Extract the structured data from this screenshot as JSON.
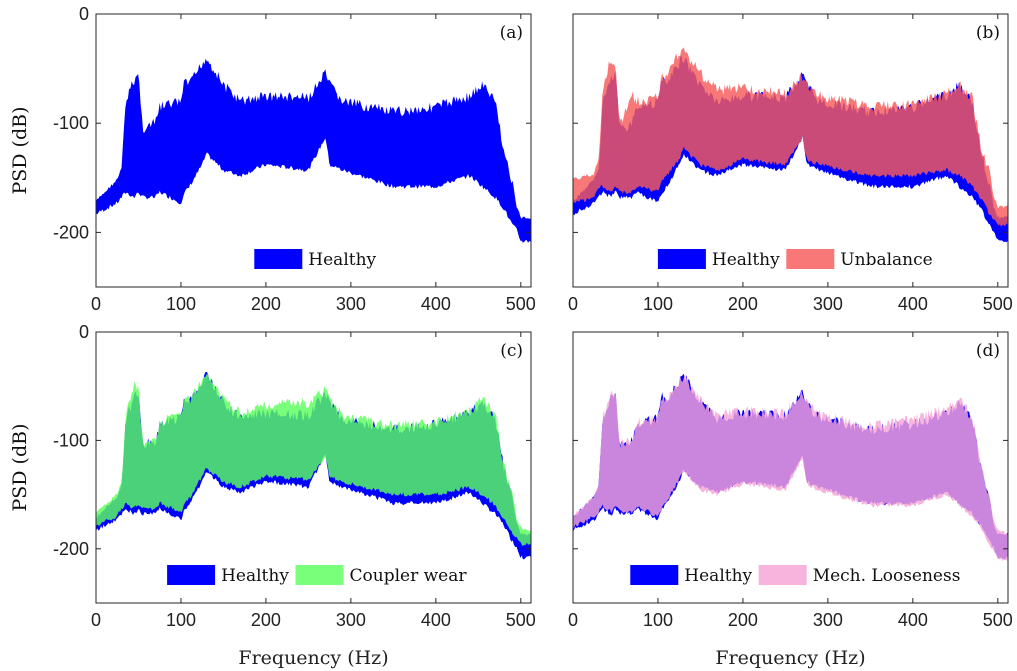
{
  "chart_data": [
    {
      "type": "area",
      "panel_label": "(a)",
      "ylabel": "PSD (dB)",
      "xlabel": "",
      "xlim": [
        0,
        512
      ],
      "ylim": [
        -250,
        0
      ],
      "xticks": [
        0,
        100,
        200,
        300,
        400,
        500
      ],
      "yticks": [
        0,
        -100,
        -200
      ],
      "ytick_labels": [
        "0",
        "-100",
        "-200"
      ],
      "show_yticks": true,
      "legend_placement": "bottom-center",
      "series": [
        {
          "name": "Healthy",
          "color": "#0000ff",
          "x": [
            0,
            25,
            30,
            35,
            45,
            50,
            55,
            70,
            75,
            100,
            105,
            110,
            125,
            130,
            150,
            170,
            200,
            250,
            270,
            275,
            290,
            350,
            400,
            440,
            455,
            470,
            480,
            490,
            495,
            500,
            512
          ],
          "upper": [
            -170,
            -150,
            -140,
            -75,
            -55,
            -50,
            -100,
            -95,
            -80,
            -75,
            -55,
            -60,
            -40,
            -35,
            -60,
            -75,
            -70,
            -72,
            -50,
            -60,
            -75,
            -85,
            -80,
            -70,
            -60,
            -75,
            -120,
            -150,
            -175,
            -185,
            -185
          ],
          "lower": [
            -185,
            -175,
            -170,
            -165,
            -170,
            -165,
            -170,
            -170,
            -165,
            -175,
            -165,
            -160,
            -140,
            -130,
            -145,
            -150,
            -140,
            -145,
            -115,
            -140,
            -145,
            -160,
            -160,
            -150,
            -160,
            -170,
            -180,
            -195,
            -200,
            -210,
            -210
          ]
        }
      ]
    },
    {
      "type": "area",
      "panel_label": "(b)",
      "ylabel": "",
      "xlabel": "",
      "xlim": [
        0,
        512
      ],
      "ylim": [
        -250,
        0
      ],
      "xticks": [
        0,
        100,
        200,
        300,
        400,
        500
      ],
      "yticks": [
        0,
        -100,
        -200
      ],
      "ytick_labels": [
        "",
        "",
        ""
      ],
      "show_yticks": false,
      "legend_placement": "bottom-center",
      "series": [
        {
          "name": "Healthy",
          "color": "#0000ff",
          "x": [
            0,
            25,
            30,
            35,
            45,
            50,
            55,
            70,
            75,
            100,
            105,
            110,
            125,
            130,
            150,
            170,
            200,
            250,
            270,
            275,
            290,
            350,
            400,
            440,
            455,
            470,
            480,
            490,
            495,
            500,
            512
          ],
          "upper": [
            -170,
            -150,
            -140,
            -75,
            -55,
            -50,
            -100,
            -95,
            -80,
            -75,
            -55,
            -60,
            -40,
            -35,
            -60,
            -75,
            -70,
            -72,
            -50,
            -60,
            -75,
            -85,
            -80,
            -70,
            -60,
            -75,
            -120,
            -150,
            -175,
            -185,
            -185
          ],
          "lower": [
            -185,
            -175,
            -170,
            -165,
            -170,
            -165,
            -170,
            -170,
            -165,
            -175,
            -165,
            -160,
            -140,
            -130,
            -145,
            -150,
            -140,
            -145,
            -115,
            -140,
            -145,
            -160,
            -160,
            -150,
            -160,
            -170,
            -180,
            -195,
            -200,
            -210,
            -210
          ]
        },
        {
          "name": "Unbalance",
          "color": "#f75a5a",
          "x": [
            0,
            25,
            30,
            35,
            45,
            50,
            55,
            70,
            75,
            100,
            105,
            110,
            125,
            130,
            150,
            170,
            200,
            250,
            270,
            275,
            290,
            350,
            400,
            440,
            455,
            470,
            480,
            490,
            495,
            500,
            512
          ],
          "upper": [
            -150,
            -145,
            -130,
            -60,
            -35,
            -45,
            -95,
            -70,
            -75,
            -72,
            -50,
            -55,
            -30,
            -28,
            -50,
            -65,
            -62,
            -68,
            -52,
            -60,
            -70,
            -80,
            -78,
            -68,
            -60,
            -72,
            -115,
            -140,
            -165,
            -175,
            -175
          ],
          "lower": [
            -175,
            -170,
            -160,
            -160,
            -165,
            -160,
            -165,
            -165,
            -160,
            -165,
            -155,
            -150,
            -135,
            -125,
            -140,
            -145,
            -135,
            -140,
            -115,
            -135,
            -140,
            -150,
            -150,
            -145,
            -150,
            -160,
            -170,
            -185,
            -190,
            -195,
            -195
          ]
        }
      ]
    },
    {
      "type": "area",
      "panel_label": "(c)",
      "ylabel": "PSD (dB)",
      "xlabel": "Frequency (Hz)",
      "xlim": [
        0,
        512
      ],
      "ylim": [
        -250,
        0
      ],
      "xticks": [
        0,
        100,
        200,
        300,
        400,
        500
      ],
      "yticks": [
        0,
        -100,
        -200
      ],
      "ytick_labels": [
        "0",
        "-100",
        "-200"
      ],
      "show_yticks": true,
      "legend_placement": "bottom-center",
      "series": [
        {
          "name": "Healthy",
          "color": "#0000ff",
          "x": [
            0,
            25,
            30,
            35,
            45,
            50,
            55,
            70,
            75,
            100,
            105,
            110,
            125,
            130,
            150,
            170,
            200,
            250,
            270,
            275,
            290,
            350,
            400,
            440,
            455,
            470,
            480,
            490,
            495,
            500,
            512
          ],
          "upper": [
            -170,
            -150,
            -140,
            -75,
            -55,
            -50,
            -100,
            -95,
            -80,
            -75,
            -55,
            -60,
            -40,
            -35,
            -60,
            -75,
            -70,
            -72,
            -50,
            -60,
            -75,
            -85,
            -80,
            -70,
            -60,
            -75,
            -120,
            -150,
            -175,
            -185,
            -185
          ],
          "lower": [
            -185,
            -175,
            -170,
            -165,
            -170,
            -165,
            -170,
            -170,
            -165,
            -175,
            -165,
            -160,
            -140,
            -130,
            -145,
            -150,
            -140,
            -145,
            -115,
            -140,
            -145,
            -160,
            -160,
            -150,
            -160,
            -170,
            -180,
            -195,
            -200,
            -210,
            -210
          ]
        },
        {
          "name": "Coupler wear",
          "color": "#5cff5c",
          "x": [
            0,
            25,
            30,
            35,
            45,
            50,
            55,
            70,
            75,
            100,
            105,
            110,
            125,
            130,
            150,
            170,
            200,
            250,
            270,
            275,
            290,
            350,
            400,
            440,
            455,
            470,
            480,
            490,
            495,
            500,
            512
          ],
          "upper": [
            -165,
            -148,
            -138,
            -70,
            -45,
            -48,
            -98,
            -92,
            -78,
            -73,
            -55,
            -58,
            -38,
            -34,
            -58,
            -70,
            -62,
            -60,
            -48,
            -58,
            -72,
            -82,
            -78,
            -68,
            -58,
            -72,
            -118,
            -145,
            -170,
            -180,
            -182
          ],
          "lower": [
            -180,
            -172,
            -165,
            -160,
            -165,
            -160,
            -165,
            -165,
            -160,
            -168,
            -158,
            -155,
            -135,
            -128,
            -140,
            -145,
            -135,
            -138,
            -118,
            -135,
            -140,
            -152,
            -152,
            -145,
            -152,
            -162,
            -175,
            -188,
            -192,
            -198,
            -198
          ]
        }
      ]
    },
    {
      "type": "area",
      "panel_label": "(d)",
      "ylabel": "",
      "xlabel": "Frequency (Hz)",
      "xlim": [
        0,
        512
      ],
      "ylim": [
        -250,
        0
      ],
      "xticks": [
        0,
        100,
        200,
        300,
        400,
        500
      ],
      "yticks": [
        0,
        -100,
        -200
      ],
      "ytick_labels": [
        "",
        "",
        ""
      ],
      "show_yticks": false,
      "legend_placement": "bottom-center",
      "series": [
        {
          "name": "Healthy",
          "color": "#0000ff",
          "x": [
            0,
            25,
            30,
            35,
            45,
            50,
            55,
            70,
            75,
            100,
            105,
            110,
            125,
            130,
            150,
            170,
            200,
            250,
            270,
            275,
            290,
            350,
            400,
            440,
            455,
            470,
            480,
            490,
            495,
            500,
            512
          ],
          "upper": [
            -170,
            -150,
            -140,
            -75,
            -55,
            -50,
            -100,
            -95,
            -80,
            -75,
            -55,
            -60,
            -40,
            -35,
            -60,
            -75,
            -70,
            -72,
            -50,
            -60,
            -75,
            -85,
            -80,
            -70,
            -60,
            -75,
            -120,
            -150,
            -175,
            -185,
            -185
          ],
          "lower": [
            -185,
            -175,
            -170,
            -165,
            -170,
            -165,
            -170,
            -170,
            -165,
            -175,
            -165,
            -160,
            -140,
            -130,
            -145,
            -150,
            -140,
            -145,
            -115,
            -140,
            -145,
            -160,
            -160,
            -150,
            -160,
            -170,
            -180,
            -195,
            -200,
            -210,
            -210
          ]
        },
        {
          "name": "Mech. Looseness",
          "color": "#f7a3d6",
          "x": [
            0,
            25,
            30,
            35,
            45,
            50,
            55,
            70,
            75,
            100,
            105,
            110,
            125,
            130,
            150,
            170,
            200,
            250,
            270,
            275,
            290,
            350,
            400,
            440,
            455,
            470,
            480,
            490,
            495,
            500,
            512
          ],
          "upper": [
            -168,
            -150,
            -140,
            -72,
            -52,
            -50,
            -100,
            -93,
            -78,
            -74,
            -55,
            -60,
            -40,
            -36,
            -58,
            -72,
            -68,
            -70,
            -50,
            -58,
            -72,
            -82,
            -76,
            -66,
            -58,
            -74,
            -118,
            -148,
            -172,
            -182,
            -184
          ],
          "lower": [
            -182,
            -172,
            -168,
            -162,
            -168,
            -163,
            -168,
            -168,
            -163,
            -172,
            -163,
            -158,
            -138,
            -130,
            -148,
            -152,
            -142,
            -148,
            -118,
            -142,
            -148,
            -162,
            -162,
            -152,
            -162,
            -172,
            -182,
            -198,
            -202,
            -212,
            -212
          ]
        }
      ]
    }
  ]
}
